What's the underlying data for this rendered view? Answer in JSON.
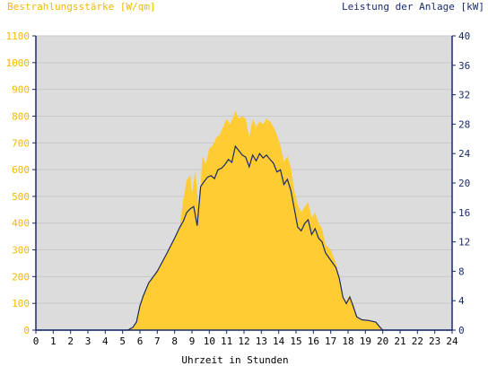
{
  "chart_data": {
    "type": "area",
    "left_axis_title": "Bestrahlungsstärke [W/qm]",
    "right_axis_title": "Leistung der Anlage [kW]",
    "xlabel": "Uhrzeit in Stunden",
    "x_ticks": [
      "0",
      "1",
      "2",
      "3",
      "4",
      "5",
      "6",
      "7",
      "8",
      "9",
      "10",
      "11",
      "12",
      "13",
      "14",
      "15",
      "16",
      "17",
      "18",
      "19",
      "20",
      "21",
      "22",
      "23",
      "24"
    ],
    "xlim": [
      0,
      24
    ],
    "y_left_ticks": [
      "0",
      "100",
      "200",
      "300",
      "400",
      "500",
      "600",
      "700",
      "800",
      "900",
      "1000",
      "1100"
    ],
    "ylim_left": [
      0,
      1100
    ],
    "y_right_ticks": [
      "0",
      "4",
      "8",
      "12",
      "16",
      "20",
      "24",
      "28",
      "32",
      "36",
      "40"
    ],
    "ylim_right": [
      0,
      40
    ],
    "series": [
      {
        "name": "Bestrahlungsstärke",
        "axis": "left",
        "style": "filled-area",
        "points": [
          [
            0,
            0
          ],
          [
            5.3,
            0
          ],
          [
            5.6,
            10
          ],
          [
            5.8,
            30
          ],
          [
            6.0,
            90
          ],
          [
            6.2,
            130
          ],
          [
            6.5,
            175
          ],
          [
            7.0,
            220
          ],
          [
            7.5,
            280
          ],
          [
            8.0,
            345
          ],
          [
            8.3,
            385
          ],
          [
            8.5,
            490
          ],
          [
            8.7,
            560
          ],
          [
            8.9,
            580
          ],
          [
            9.0,
            510
          ],
          [
            9.2,
            600
          ],
          [
            9.4,
            430
          ],
          [
            9.6,
            650
          ],
          [
            9.8,
            620
          ],
          [
            10.0,
            680
          ],
          [
            10.2,
            690
          ],
          [
            10.4,
            720
          ],
          [
            10.6,
            730
          ],
          [
            10.8,
            760
          ],
          [
            11.0,
            790
          ],
          [
            11.2,
            770
          ],
          [
            11.4,
            800
          ],
          [
            11.5,
            820
          ],
          [
            11.7,
            790
          ],
          [
            11.9,
            800
          ],
          [
            12.1,
            790
          ],
          [
            12.3,
            720
          ],
          [
            12.5,
            790
          ],
          [
            12.7,
            760
          ],
          [
            12.9,
            780
          ],
          [
            13.1,
            770
          ],
          [
            13.3,
            790
          ],
          [
            13.5,
            780
          ],
          [
            13.7,
            760
          ],
          [
            13.9,
            730
          ],
          [
            14.1,
            690
          ],
          [
            14.3,
            630
          ],
          [
            14.5,
            650
          ],
          [
            14.7,
            610
          ],
          [
            14.9,
            520
          ],
          [
            15.1,
            470
          ],
          [
            15.3,
            440
          ],
          [
            15.5,
            460
          ],
          [
            15.7,
            480
          ],
          [
            15.9,
            420
          ],
          [
            16.1,
            440
          ],
          [
            16.3,
            400
          ],
          [
            16.5,
            380
          ],
          [
            16.7,
            320
          ],
          [
            17.0,
            300
          ],
          [
            17.3,
            250
          ],
          [
            17.5,
            200
          ],
          [
            17.7,
            120
          ],
          [
            17.9,
            110
          ],
          [
            18.1,
            130
          ],
          [
            18.3,
            100
          ],
          [
            18.5,
            50
          ],
          [
            18.8,
            40
          ],
          [
            19.2,
            38
          ],
          [
            19.6,
            30
          ],
          [
            19.8,
            15
          ],
          [
            20.0,
            0
          ],
          [
            24,
            0
          ]
        ]
      },
      {
        "name": "Leistung der Anlage",
        "axis": "right",
        "style": "line",
        "color": "#1a2a5e",
        "points": [
          [
            0,
            0
          ],
          [
            5.3,
            0
          ],
          [
            5.6,
            0.4
          ],
          [
            5.8,
            1.1
          ],
          [
            6.0,
            3.3
          ],
          [
            6.2,
            4.7
          ],
          [
            6.5,
            6.4
          ],
          [
            7.0,
            8.0
          ],
          [
            7.5,
            10.2
          ],
          [
            8.0,
            12.5
          ],
          [
            8.3,
            14.0
          ],
          [
            8.5,
            14.8
          ],
          [
            8.7,
            16.0
          ],
          [
            8.9,
            16.5
          ],
          [
            9.1,
            16.8
          ],
          [
            9.3,
            14.2
          ],
          [
            9.5,
            19.5
          ],
          [
            9.7,
            20.2
          ],
          [
            9.9,
            20.8
          ],
          [
            10.1,
            21.0
          ],
          [
            10.3,
            20.6
          ],
          [
            10.5,
            21.8
          ],
          [
            10.7,
            22.0
          ],
          [
            10.9,
            22.5
          ],
          [
            11.1,
            23.2
          ],
          [
            11.3,
            22.8
          ],
          [
            11.5,
            25.0
          ],
          [
            11.7,
            24.4
          ],
          [
            11.9,
            23.8
          ],
          [
            12.1,
            23.5
          ],
          [
            12.3,
            22.2
          ],
          [
            12.5,
            23.8
          ],
          [
            12.7,
            23.0
          ],
          [
            12.9,
            24.0
          ],
          [
            13.1,
            23.4
          ],
          [
            13.3,
            23.8
          ],
          [
            13.5,
            23.2
          ],
          [
            13.7,
            22.7
          ],
          [
            13.9,
            21.5
          ],
          [
            14.1,
            21.8
          ],
          [
            14.3,
            19.8
          ],
          [
            14.5,
            20.5
          ],
          [
            14.7,
            19.0
          ],
          [
            14.9,
            16.5
          ],
          [
            15.1,
            14.0
          ],
          [
            15.3,
            13.5
          ],
          [
            15.5,
            14.5
          ],
          [
            15.7,
            15.0
          ],
          [
            15.9,
            13.0
          ],
          [
            16.1,
            13.8
          ],
          [
            16.3,
            12.5
          ],
          [
            16.5,
            12.0
          ],
          [
            16.7,
            10.5
          ],
          [
            17.0,
            9.5
          ],
          [
            17.3,
            8.5
          ],
          [
            17.5,
            7.0
          ],
          [
            17.7,
            4.5
          ],
          [
            17.9,
            3.6
          ],
          [
            18.1,
            4.5
          ],
          [
            18.3,
            3.2
          ],
          [
            18.5,
            1.8
          ],
          [
            18.8,
            1.4
          ],
          [
            19.2,
            1.3
          ],
          [
            19.6,
            1.1
          ],
          [
            19.8,
            0.5
          ],
          [
            20.0,
            0
          ],
          [
            24,
            0
          ]
        ]
      }
    ],
    "colors": {
      "area_fill": "#ffcc33",
      "plot_background": "#dcdcdc",
      "left_axis_text": "#f5b800",
      "right_axis_text": "#1a2a6e",
      "axis_line": "#1a2a6e",
      "grid": "#c8c8c8"
    },
    "grid": true
  }
}
